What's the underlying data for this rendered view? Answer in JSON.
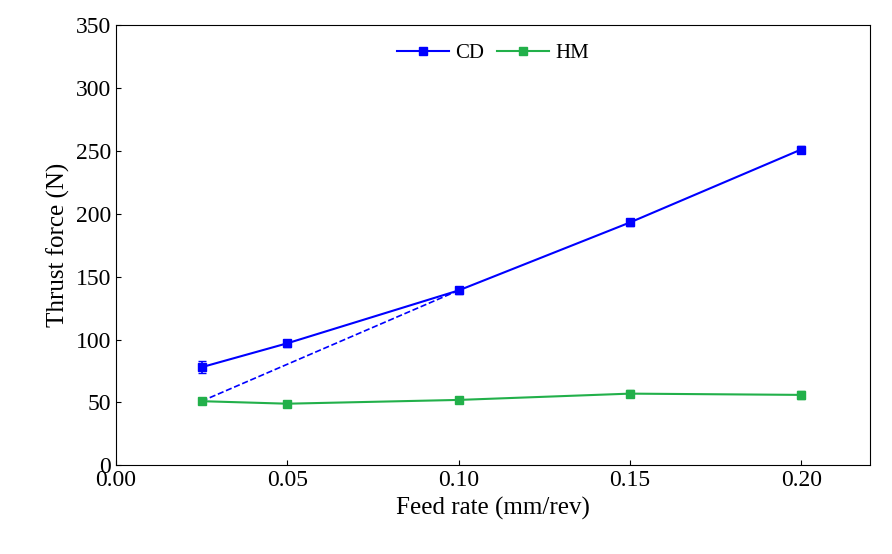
{
  "chart_data": {
    "type": "line",
    "x_label": "Feed rate (mm/rev)",
    "y_label": "Thrust force (N)",
    "x": [
      0.025,
      0.05,
      0.1,
      0.15,
      0.2
    ],
    "series": [
      {
        "name": "CD",
        "color": "#0000ff",
        "marker": "square",
        "line_style": "solid",
        "values": [
          78,
          97,
          139,
          193,
          251
        ],
        "errors": [
          5,
          3,
          3,
          3,
          3
        ]
      },
      {
        "name": "HM",
        "color": "#22b04a",
        "marker": "square",
        "line_style": "solid",
        "values": [
          51,
          49,
          52,
          57,
          56
        ],
        "errors": [
          2,
          2,
          2,
          3,
          3
        ]
      },
      {
        "color": "#0000ff",
        "marker": "none",
        "line_style": "dashed",
        "x": [
          0.025,
          0.1
        ],
        "values": [
          51,
          139
        ]
      }
    ],
    "xlim": [
      0,
      0.22
    ],
    "xticks": [
      {
        "value": 0,
        "label": "0.00"
      },
      {
        "value": 0.05,
        "label": "0.05"
      },
      {
        "value": 0.1,
        "label": "0.10"
      },
      {
        "value": 0.15,
        "label": "0.15"
      },
      {
        "value": 0.2,
        "label": "0.20"
      }
    ],
    "ylim": [
      0,
      350
    ],
    "yticks": [
      0,
      50,
      100,
      150,
      200,
      250,
      300,
      350
    ],
    "legend": "upper center",
    "grid": false
  }
}
